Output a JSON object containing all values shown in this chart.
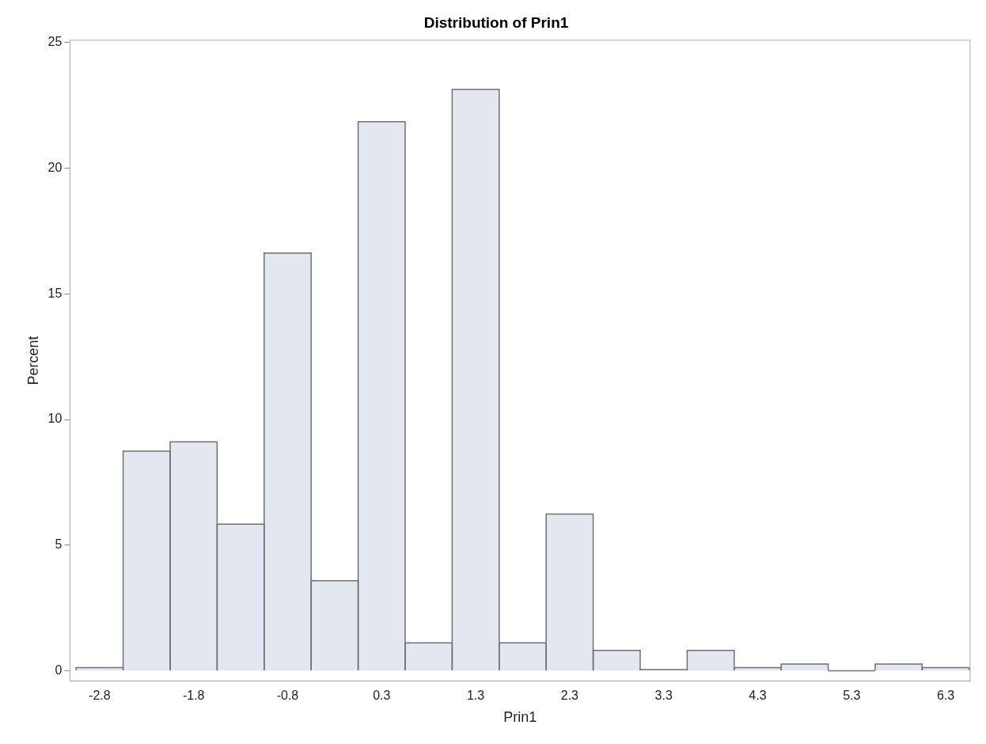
{
  "chart_data": {
    "type": "histogram",
    "title": "Distribution of Prin1",
    "xlabel": "Prin1",
    "ylabel": "Percent",
    "bins": [
      -3.0435,
      -2.5365,
      -2.0295,
      -1.5225,
      -1.0155,
      -0.5085,
      -0.0015,
      0.5055,
      1.0125,
      1.5195,
      2.0265,
      2.5335,
      3.0405,
      3.5475,
      4.0545,
      4.5615,
      5.0685,
      5.5755,
      6.0825,
      6.5895
    ],
    "values": [
      0.13,
      8.74,
      9.11,
      5.84,
      16.63,
      3.58,
      21.86,
      1.11,
      23.14,
      1.11,
      6.24,
      0.81,
      0.05,
      0.81,
      0.13,
      0.27,
      0,
      0.27,
      0.13
    ],
    "color": "#e3e7f0",
    "xlim": [
      -3.11,
      6.6
    ],
    "xticks": [
      {
        "value": -2.79,
        "label": "-2.8"
      },
      {
        "value": -1.776,
        "label": "-1.8"
      },
      {
        "value": -0.762,
        "label": "-0.8"
      },
      {
        "value": 0.252,
        "label": "0.3"
      },
      {
        "value": 1.266,
        "label": "1.3"
      },
      {
        "value": 2.28,
        "label": "2.3"
      },
      {
        "value": 3.294,
        "label": "3.3"
      },
      {
        "value": 4.308,
        "label": "4.3"
      },
      {
        "value": 5.322,
        "label": "5.3"
      },
      {
        "value": 6.336,
        "label": "6.3"
      }
    ],
    "ylim": [
      -0.4,
      25.1
    ],
    "yticks": [
      0,
      5,
      10,
      15,
      20,
      25
    ],
    "grid": false,
    "legend": false
  }
}
